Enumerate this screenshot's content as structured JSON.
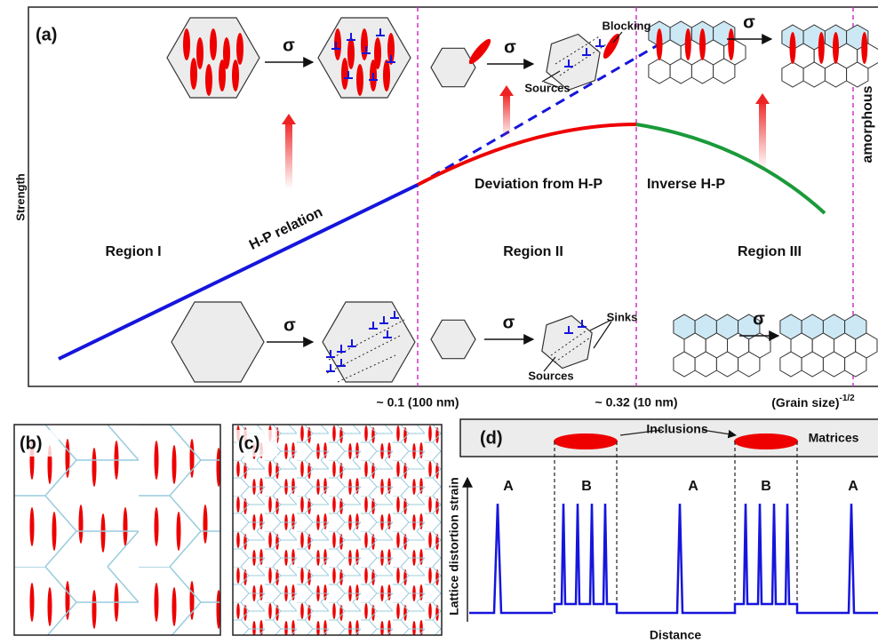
{
  "panel_a": {
    "label": "(a)",
    "y_axis_label": "Strength",
    "x_axis_label": {
      "text": "(Grain size)",
      "exponent": "-1/2"
    },
    "x_marks": [
      "~ 0.1 (100 nm)",
      "~ 0.32 (10 nm)"
    ],
    "transitions": [
      "σ",
      "σ",
      "σ",
      "σ",
      "σ",
      "σ"
    ],
    "regions": [
      "Region I",
      "Region II",
      "Region III"
    ],
    "curve_labels": [
      "H-P relation",
      "Deviation from H-P",
      "Inverse H-P"
    ],
    "amorphous": "amorphous",
    "annotations": {
      "blocking": "Blocking",
      "sources_top": "Sources",
      "sinks": "Sinks",
      "sources_bottom": "Sources"
    }
  },
  "panel_b": {
    "label": "(b)"
  },
  "panel_c": {
    "label": "(c)"
  },
  "panel_d": {
    "label": "(d)",
    "inclusions": "Inclusions",
    "matrices": "Matrices",
    "zones": [
      "A",
      "B",
      "A",
      "B",
      "A"
    ],
    "y_axis_label": "Lattice distortion strain",
    "x_axis_label": "Distance"
  }
}
